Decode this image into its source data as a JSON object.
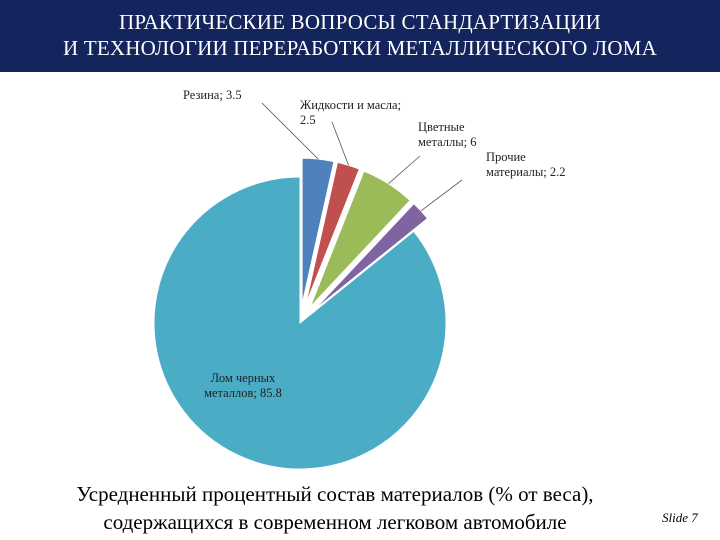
{
  "title": {
    "line1": "ПРАКТИЧЕСКИЕ ВОПРОСЫ СТАНДАРТИЗАЦИИ",
    "line2": "И ТЕХНОЛОГИИ ПЕРЕРАБОТКИ МЕТАЛЛИЧЕСКОГО ЛОМА"
  },
  "chart_data": {
    "type": "pie",
    "exploded": true,
    "slices": [
      {
        "label_lines": [
          "Резина; 3.5"
        ],
        "value": 3.5,
        "color": "#4f81bd"
      },
      {
        "label_lines": [
          "Жидкости и масла;",
          "2.5"
        ],
        "value": 2.5,
        "color": "#c0504d"
      },
      {
        "label_lines": [
          "Цветные",
          "металлы; 6"
        ],
        "value": 6,
        "color": "#9bbb59"
      },
      {
        "label_lines": [
          "Прочие",
          "материалы; 2.2"
        ],
        "value": 2.2,
        "color": "#8064a2"
      },
      {
        "label_lines": [
          "Лом черных",
          "металлов; 85.8"
        ],
        "value": 85.8,
        "color": "#4bacc6"
      }
    ]
  },
  "caption": {
    "line1": "Усредненный процентный состав материалов (% от веса),",
    "line2": "содержащихся в современном легковом автомобиле"
  },
  "slide_number": "Slide 7"
}
